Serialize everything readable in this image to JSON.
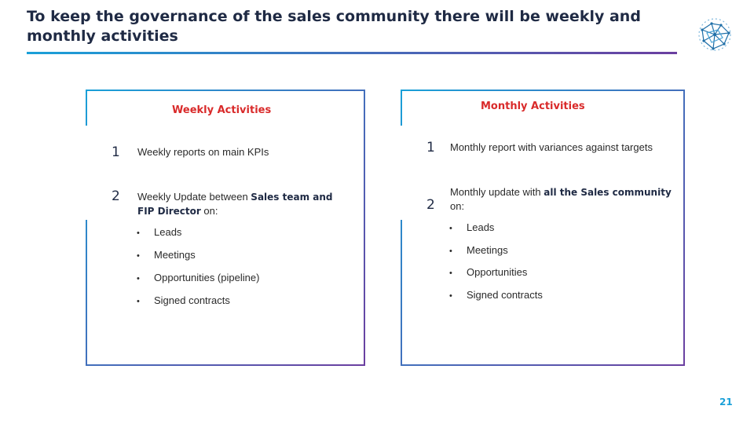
{
  "slide": {
    "title": "To keep the governance of the sales community there will be weekly and monthly activities",
    "page_number": "21"
  },
  "weekly": {
    "heading": "Weekly Activities",
    "item1": {
      "number": "1",
      "text": "Weekly reports on main KPIs"
    },
    "item2": {
      "number": "2",
      "text_prefix": "Weekly Update between ",
      "text_bold": "Sales team and FIP Director",
      "text_suffix": " on:"
    },
    "bullets": [
      "Leads",
      "Meetings",
      "Opportunities (pipeline)",
      "Signed contracts"
    ]
  },
  "monthly": {
    "heading": "Monthly Activities",
    "item1": {
      "number": "1",
      "text": "Monthly report with variances against targets"
    },
    "item2": {
      "number": "2",
      "text_prefix": "Monthly update with ",
      "text_bold": "all the Sales community",
      "text_suffix": " on:"
    },
    "bullets": [
      "Leads",
      "Meetings",
      "Opportunities",
      "Signed contracts"
    ]
  },
  "colors": {
    "accent_blue": "#1aa0d8",
    "accent_purple": "#6b3fa0",
    "heading_red": "#d92a2a",
    "title_navy": "#1f2a44"
  },
  "icons": {
    "logo": "network-sphere-icon",
    "bullet": "bullet-dot"
  }
}
